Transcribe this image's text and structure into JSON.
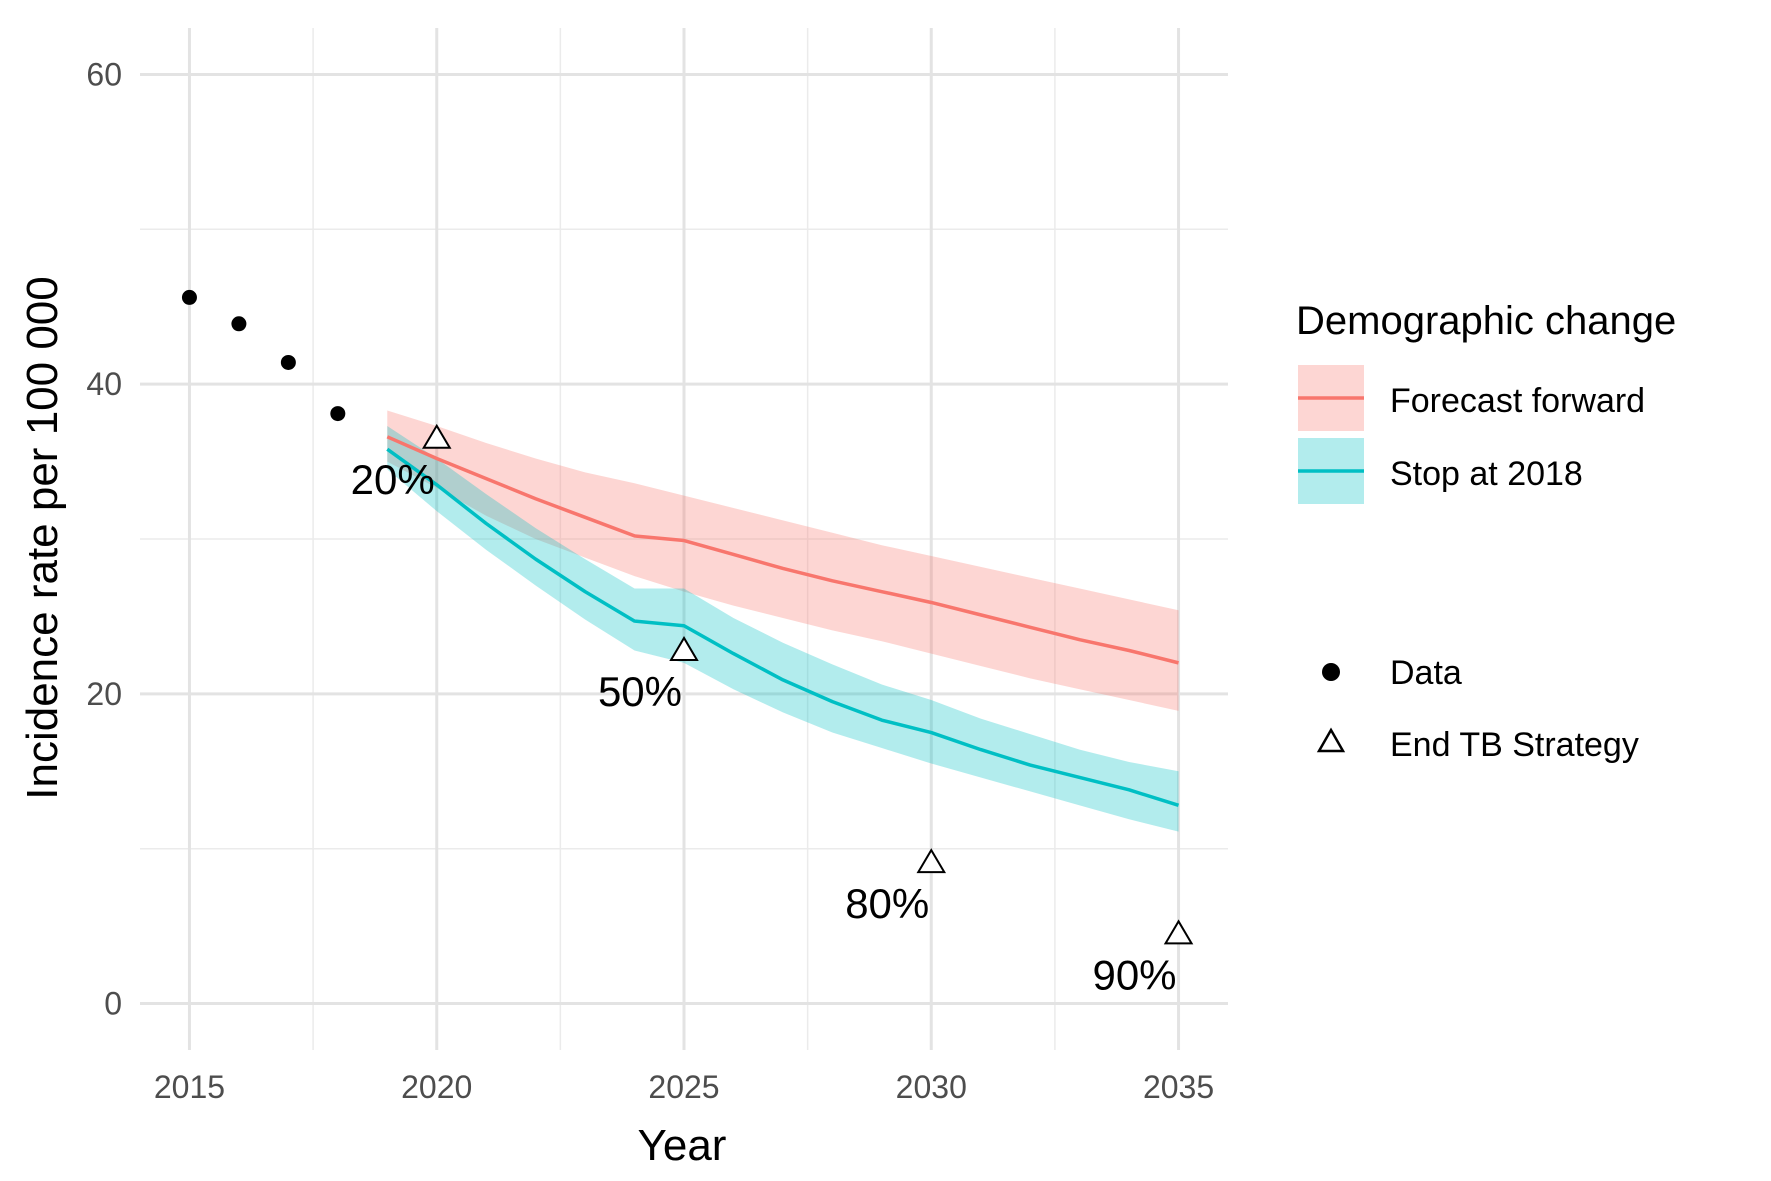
{
  "chart_data": {
    "type": "line",
    "title": "",
    "xlabel": "Year",
    "ylabel": "Incidence rate per 100 000",
    "xlim": [
      2014.0,
      2036.0
    ],
    "ylim": [
      -3.0,
      63.0
    ],
    "x_ticks": [
      2015,
      2020,
      2025,
      2030,
      2035
    ],
    "y_ticks": [
      0,
      20,
      40,
      60
    ],
    "x_tick_labels": [
      "2015",
      "2020",
      "2025",
      "2030",
      "2035"
    ],
    "y_tick_labels": [
      "0",
      "20",
      "40",
      "60"
    ],
    "grid": true,
    "legend_position": "right",
    "legend_title": "Demographic change",
    "series": [
      {
        "name": "Forecast forward",
        "color": "#F8766D",
        "x": [
          2019,
          2020,
          2021,
          2022,
          2023,
          2024,
          2025,
          2026,
          2027,
          2028,
          2029,
          2030,
          2031,
          2032,
          2033,
          2034,
          2035
        ],
        "y": [
          36.6,
          35.2,
          33.9,
          32.6,
          31.4,
          30.2,
          29.9,
          29.0,
          28.1,
          27.3,
          26.6,
          25.9,
          25.1,
          24.3,
          23.5,
          22.8,
          22.0
        ],
        "lower": [
          35.0,
          33.3,
          31.5,
          30.0,
          28.8,
          27.6,
          26.6,
          25.7,
          24.9,
          24.1,
          23.4,
          22.6,
          21.8,
          21.0,
          20.3,
          19.6,
          18.9
        ],
        "upper": [
          38.3,
          37.3,
          36.2,
          35.2,
          34.3,
          33.6,
          32.8,
          32.0,
          31.2,
          30.4,
          29.6,
          28.9,
          28.2,
          27.5,
          26.8,
          26.1,
          25.4
        ]
      },
      {
        "name": "Stop at 2018",
        "color": "#00BFC4",
        "x": [
          2019,
          2020,
          2021,
          2022,
          2023,
          2024,
          2025,
          2026,
          2027,
          2028,
          2029,
          2030,
          2031,
          2032,
          2033,
          2034,
          2035
        ],
        "y": [
          35.8,
          33.5,
          31.0,
          28.7,
          26.6,
          24.7,
          24.4,
          22.6,
          20.9,
          19.5,
          18.3,
          17.5,
          16.4,
          15.4,
          14.6,
          13.8,
          12.8
        ],
        "lower": [
          34.5,
          31.8,
          29.3,
          27.0,
          24.8,
          22.8,
          22.0,
          20.3,
          18.8,
          17.5,
          16.5,
          15.5,
          14.6,
          13.7,
          12.8,
          11.9,
          11.1
        ],
        "upper": [
          37.3,
          35.2,
          32.9,
          30.7,
          28.7,
          26.8,
          26.8,
          24.9,
          23.3,
          21.9,
          20.6,
          19.6,
          18.4,
          17.4,
          16.4,
          15.6,
          15.0
        ]
      }
    ],
    "points": {
      "name": "Data",
      "x": [
        2015,
        2016,
        2017,
        2018
      ],
      "y": [
        45.6,
        43.9,
        41.4,
        38.1
      ]
    },
    "targets": {
      "name": "End TB Strategy",
      "x": [
        2020,
        2025,
        2030,
        2035
      ],
      "y": [
        36.6,
        22.9,
        9.2,
        4.6
      ],
      "labels": [
        "20%",
        "50%",
        "80%",
        "90%"
      ]
    }
  },
  "legend": {
    "title": "Demographic change",
    "items": [
      "Forecast forward",
      "Stop at 2018"
    ],
    "point_items": [
      "Data",
      "End TB Strategy"
    ]
  }
}
